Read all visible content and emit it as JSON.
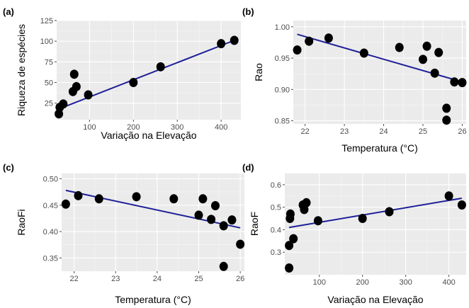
{
  "chart_data": [
    {
      "type": "scatter",
      "panel_label": "(a)",
      "xlabel": "Variação na Elevação",
      "ylabel": "Riqueza de espécies",
      "xlim": [
        25,
        445
      ],
      "ylim": [
        5,
        125
      ],
      "xticks": [
        100,
        200,
        300,
        400
      ],
      "yticks": [
        25,
        50,
        75,
        100,
        125
      ],
      "points": [
        {
          "x": 30,
          "y": 12
        },
        {
          "x": 32,
          "y": 20
        },
        {
          "x": 40,
          "y": 24
        },
        {
          "x": 62,
          "y": 39
        },
        {
          "x": 65,
          "y": 60
        },
        {
          "x": 70,
          "y": 45
        },
        {
          "x": 97,
          "y": 35
        },
        {
          "x": 200,
          "y": 50
        },
        {
          "x": 262,
          "y": 69
        },
        {
          "x": 400,
          "y": 97
        },
        {
          "x": 430,
          "y": 101
        }
      ],
      "fit": {
        "x": [
          30,
          430
        ],
        "y": [
          18,
          101
        ]
      }
    },
    {
      "type": "scatter",
      "panel_label": "(b)",
      "xlabel": "Temperatura (°C)",
      "ylabel": "Rao",
      "xlim": [
        21.7,
        26.1
      ],
      "ylim": [
        0.845,
        1.01
      ],
      "xticks": [
        22,
        23,
        24,
        25,
        26
      ],
      "yticks": [
        0.85,
        0.9,
        0.95,
        1.0
      ],
      "points": [
        {
          "x": 21.8,
          "y": 0.963
        },
        {
          "x": 22.1,
          "y": 0.977
        },
        {
          "x": 22.6,
          "y": 0.982
        },
        {
          "x": 23.5,
          "y": 0.958
        },
        {
          "x": 24.4,
          "y": 0.967
        },
        {
          "x": 25.0,
          "y": 0.948
        },
        {
          "x": 25.1,
          "y": 0.969
        },
        {
          "x": 25.3,
          "y": 0.926
        },
        {
          "x": 25.4,
          "y": 0.959
        },
        {
          "x": 25.6,
          "y": 0.87
        },
        {
          "x": 25.6,
          "y": 0.851
        },
        {
          "x": 25.8,
          "y": 0.912
        },
        {
          "x": 26.0,
          "y": 0.911
        }
      ],
      "fit": {
        "x": [
          21.8,
          26.0
        ],
        "y": [
          0.988,
          0.912
        ]
      }
    },
    {
      "type": "scatter",
      "panel_label": "(c)",
      "xlabel": "Temperatura (°C)",
      "ylabel": "RaoFi",
      "xlim": [
        21.7,
        26.1
      ],
      "ylim": [
        0.325,
        0.51
      ],
      "xticks": [
        22,
        23,
        24,
        25,
        26
      ],
      "yticks": [
        0.35,
        0.4,
        0.45,
        0.5
      ],
      "points": [
        {
          "x": 21.8,
          "y": 0.452
        },
        {
          "x": 22.1,
          "y": 0.468
        },
        {
          "x": 22.6,
          "y": 0.462
        },
        {
          "x": 23.5,
          "y": 0.466
        },
        {
          "x": 24.4,
          "y": 0.462
        },
        {
          "x": 25.0,
          "y": 0.431
        },
        {
          "x": 25.1,
          "y": 0.462
        },
        {
          "x": 25.3,
          "y": 0.423
        },
        {
          "x": 25.4,
          "y": 0.449
        },
        {
          "x": 25.6,
          "y": 0.411
        },
        {
          "x": 25.6,
          "y": 0.334
        },
        {
          "x": 25.8,
          "y": 0.422
        },
        {
          "x": 26.0,
          "y": 0.376
        }
      ],
      "fit": {
        "x": [
          21.8,
          26.0
        ],
        "y": [
          0.478,
          0.407
        ]
      }
    },
    {
      "type": "scatter",
      "panel_label": "(d)",
      "xlabel": "Variação na Elevação",
      "ylabel": "RaoF",
      "xlim": [
        20,
        440
      ],
      "ylim": [
        0.2,
        0.65
      ],
      "xticks": [
        100,
        200,
        300,
        400
      ],
      "yticks": [
        0.3,
        0.4,
        0.5,
        0.6
      ],
      "points": [
        {
          "x": 30,
          "y": 0.23
        },
        {
          "x": 30,
          "y": 0.33
        },
        {
          "x": 32,
          "y": 0.45
        },
        {
          "x": 33,
          "y": 0.47
        },
        {
          "x": 40,
          "y": 0.36
        },
        {
          "x": 62,
          "y": 0.51
        },
        {
          "x": 65,
          "y": 0.49
        },
        {
          "x": 70,
          "y": 0.52
        },
        {
          "x": 97,
          "y": 0.44
        },
        {
          "x": 200,
          "y": 0.45
        },
        {
          "x": 262,
          "y": 0.48
        },
        {
          "x": 400,
          "y": 0.55
        },
        {
          "x": 430,
          "y": 0.51
        }
      ],
      "fit": {
        "x": [
          30,
          430
        ],
        "y": [
          0.41,
          0.54
        ]
      }
    }
  ]
}
